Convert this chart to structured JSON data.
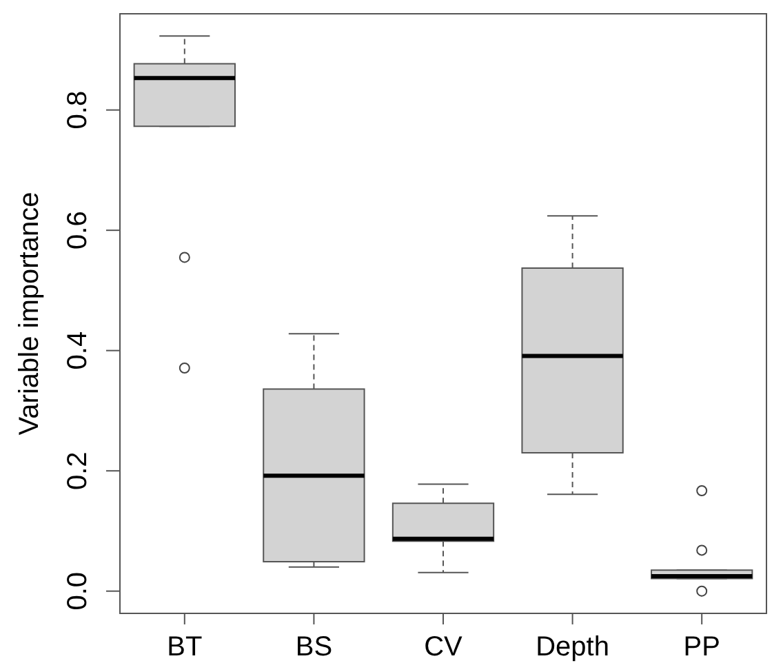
{
  "chart_data": {
    "type": "box",
    "ylabel": "Variable importance",
    "categories": [
      "BT",
      "BS",
      "CV",
      "Depth",
      "PP"
    ],
    "ylim": [
      -0.037,
      0.96
    ],
    "yticks": [
      {
        "value": 0,
        "label": "0.0"
      },
      0.2,
      0.4,
      0.6,
      0.8
    ],
    "grid": false,
    "legend": false,
    "series": [
      {
        "color": "#d3d3d3",
        "boxes": [
          {
            "low": 0.773,
            "q1": 0.773,
            "median": 0.853,
            "q3": 0.877,
            "high": 0.923,
            "outliers": [
              0.555,
              0.371
            ]
          },
          {
            "low": 0.04,
            "q1": 0.049,
            "median": 0.192,
            "q3": 0.336,
            "high": 0.428
          },
          {
            "low": 0.031,
            "q1": 0.083,
            "median": 0.087,
            "q3": 0.146,
            "high": 0.178
          },
          {
            "low": 0.161,
            "q1": 0.23,
            "median": 0.391,
            "q3": 0.537,
            "high": 0.624
          },
          {
            "low": 0.021,
            "q1": 0.021,
            "median": 0.025,
            "q3": 0.035,
            "high": 0.035,
            "outliers": [
              0.167,
              0.068,
              0
            ]
          }
        ]
      }
    ]
  }
}
